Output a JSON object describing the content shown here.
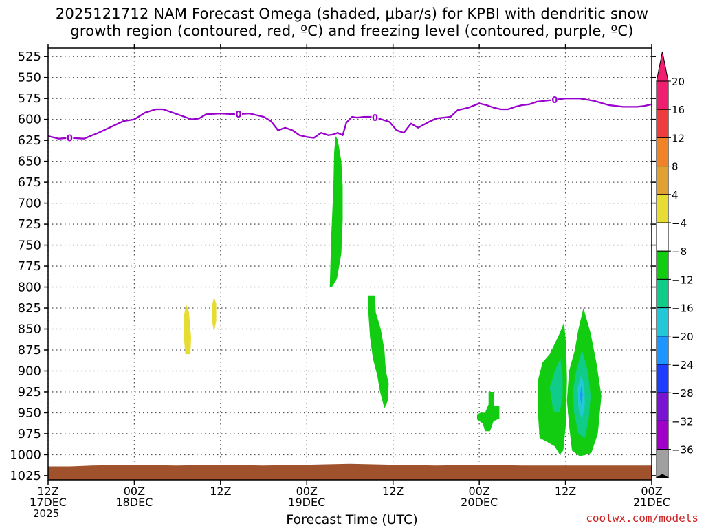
{
  "title": {
    "line1": "2025121712 NAM Forecast Omega (shaded, μbar/s) for KPBI with dendritic snow",
    "line2": "growth region (contoured, red, ºC) and freezing level (contoured, purple, ºC)"
  },
  "credit": "coolwx.com/models",
  "chart_data": {
    "type": "time-height",
    "title": "2025121712 NAM Forecast Omega (shaded, μbar/s) for KPBI with dendritic snow growth region (contoured, red, ºC) and freezing level (contoured, purple, ºC)",
    "xlabel": "Forecast Time (UTC)",
    "ylabel": "",
    "x_range_hours": [
      0,
      84
    ],
    "y_range_mb": [
      1030,
      515
    ],
    "y_ticks": [
      525,
      550,
      575,
      600,
      625,
      650,
      675,
      700,
      725,
      750,
      775,
      800,
      825,
      850,
      875,
      900,
      925,
      950,
      975,
      1000,
      1025
    ],
    "x_ticks": [
      {
        "hour": 0,
        "line1": "12Z",
        "line2": "17DEC",
        "line3": "2025"
      },
      {
        "hour": 12,
        "line1": "00Z",
        "line2": "18DEC"
      },
      {
        "hour": 24,
        "line1": "12Z"
      },
      {
        "hour": 36,
        "line1": "00Z",
        "line2": "19DEC"
      },
      {
        "hour": 48,
        "line1": "12Z"
      },
      {
        "hour": 60,
        "line1": "00Z",
        "line2": "20DEC"
      },
      {
        "hour": 72,
        "line1": "12Z"
      },
      {
        "hour": 84,
        "line1": "00Z",
        "line2": "21DEC"
      }
    ],
    "grid": true,
    "freezing_level": {
      "color": "#9900cc",
      "label": "0",
      "label_hours": [
        3,
        26.5,
        45.5,
        70.5
      ],
      "points": [
        [
          0,
          620
        ],
        [
          1.5,
          623
        ],
        [
          3,
          622
        ],
        [
          5,
          623
        ],
        [
          7,
          616
        ],
        [
          9,
          608
        ],
        [
          10.5,
          602
        ],
        [
          12,
          600
        ],
        [
          13.5,
          592
        ],
        [
          15,
          588
        ],
        [
          16,
          588
        ],
        [
          18,
          594
        ],
        [
          20,
          600
        ],
        [
          21,
          599
        ],
        [
          22,
          594
        ],
        [
          24,
          593
        ],
        [
          26,
          594
        ],
        [
          28,
          593
        ],
        [
          30,
          597
        ],
        [
          31,
          602
        ],
        [
          32,
          613
        ],
        [
          33,
          610
        ],
        [
          34,
          613
        ],
        [
          35,
          619
        ],
        [
          36,
          621
        ],
        [
          37,
          622
        ],
        [
          38,
          616
        ],
        [
          39,
          619
        ],
        [
          39.7,
          618
        ],
        [
          40.3,
          616
        ],
        [
          41,
          619
        ],
        [
          41.5,
          604
        ],
        [
          42.3,
          597
        ],
        [
          43,
          598
        ],
        [
          44,
          597
        ],
        [
          45,
          597
        ],
        [
          46,
          599
        ],
        [
          47.5,
          603
        ],
        [
          48.5,
          613
        ],
        [
          49.5,
          616
        ],
        [
          50.5,
          605
        ],
        [
          51.5,
          610
        ],
        [
          53,
          603
        ],
        [
          54,
          599
        ],
        [
          55,
          598
        ],
        [
          56,
          597
        ],
        [
          57,
          589
        ],
        [
          58.5,
          586
        ],
        [
          60,
          581
        ],
        [
          61,
          583
        ],
        [
          62,
          586
        ],
        [
          63,
          588
        ],
        [
          64,
          588
        ],
        [
          65,
          585
        ],
        [
          66,
          583
        ],
        [
          67,
          582
        ],
        [
          68,
          579
        ],
        [
          70,
          577
        ],
        [
          71,
          576
        ],
        [
          72,
          575
        ],
        [
          74,
          575
        ],
        [
          76,
          578
        ],
        [
          78,
          583
        ],
        [
          80,
          585
        ],
        [
          82,
          585
        ],
        [
          83,
          584
        ],
        [
          84,
          582
        ]
      ]
    },
    "omega_regions": [
      {
        "value_range": [
          -8,
          -4
        ],
        "color": "#11cc11",
        "shape": [
          [
            39.2,
            800
          ],
          [
            39.4,
            740
          ],
          [
            39.7,
            680
          ],
          [
            39.8,
            640
          ],
          [
            40,
            620
          ],
          [
            40.3,
            624
          ],
          [
            40.8,
            650
          ],
          [
            41,
            680
          ],
          [
            41,
            720
          ],
          [
            40.8,
            760
          ],
          [
            40.2,
            790
          ],
          [
            39.5,
            800
          ]
        ]
      },
      {
        "value_range": [
          -8,
          -4
        ],
        "color": "#11cc11",
        "shape": [
          [
            44.5,
            810
          ],
          [
            45.5,
            810
          ],
          [
            45.6,
            830
          ],
          [
            46.3,
            850
          ],
          [
            46.8,
            875
          ],
          [
            47,
            900
          ],
          [
            47.4,
            915
          ],
          [
            47.3,
            935
          ],
          [
            46.8,
            945
          ],
          [
            46.2,
            925
          ],
          [
            45.8,
            905
          ],
          [
            45.2,
            885
          ],
          [
            44.8,
            860
          ],
          [
            44.6,
            835
          ]
        ]
      },
      {
        "value_range": [
          -8,
          -4
        ],
        "color": "#11cc11",
        "shape": [
          [
            60.2,
            950
          ],
          [
            60.8,
            950
          ],
          [
            61.3,
            940
          ],
          [
            61.3,
            925
          ],
          [
            62,
            925
          ],
          [
            62,
            942
          ],
          [
            62.8,
            942
          ],
          [
            62.8,
            957
          ],
          [
            62,
            960
          ],
          [
            61.5,
            972
          ],
          [
            60.8,
            972
          ],
          [
            60.5,
            963
          ],
          [
            59.7,
            958
          ],
          [
            59.7,
            952
          ]
        ]
      },
      {
        "value_range": [
          -8,
          -4
        ],
        "color": "#11cc11",
        "shape": [
          [
            71.8,
            842
          ],
          [
            71.2,
            855
          ],
          [
            69.8,
            880
          ],
          [
            68.8,
            890
          ],
          [
            68.2,
            910
          ],
          [
            68.2,
            955
          ],
          [
            68.4,
            980
          ],
          [
            69.5,
            985
          ],
          [
            70.5,
            990
          ],
          [
            71.2,
            1000
          ],
          [
            71.7,
            995
          ],
          [
            72.1,
            960
          ],
          [
            72.2,
            910
          ],
          [
            72.1,
            870
          ]
        ]
      },
      {
        "value_range": [
          -12,
          -8
        ],
        "color": "#11cc88",
        "shape": [
          [
            71.3,
            885
          ],
          [
            70.5,
            900
          ],
          [
            69.8,
            920
          ],
          [
            70.3,
            948
          ],
          [
            71.2,
            950
          ],
          [
            71.6,
            930
          ],
          [
            71.6,
            905
          ]
        ]
      },
      {
        "value_range": [
          -8,
          -4
        ],
        "color": "#11cc11",
        "shape": [
          [
            74.5,
            825
          ],
          [
            73.8,
            850
          ],
          [
            73.3,
            875
          ],
          [
            72.5,
            900
          ],
          [
            72.2,
            935
          ],
          [
            72.5,
            965
          ],
          [
            72.9,
            995
          ],
          [
            74,
            1002
          ],
          [
            75.6,
            998
          ],
          [
            76.5,
            975
          ],
          [
            77,
            930
          ],
          [
            76.3,
            890
          ],
          [
            75.5,
            855
          ]
        ]
      },
      {
        "value_range": [
          -12,
          -8
        ],
        "color": "#11cc88",
        "shape": [
          [
            74.3,
            875
          ],
          [
            73.5,
            900
          ],
          [
            73,
            925
          ],
          [
            73.2,
            950
          ],
          [
            73.8,
            975
          ],
          [
            74.7,
            980
          ],
          [
            75.2,
            960
          ],
          [
            75.5,
            930
          ],
          [
            75.1,
            900
          ]
        ]
      },
      {
        "value_range": [
          -16,
          -12
        ],
        "color": "#22c8d8",
        "shape": [
          [
            74.2,
            905
          ],
          [
            73.7,
            920
          ],
          [
            73.8,
            945
          ],
          [
            74.3,
            958
          ],
          [
            74.7,
            940
          ],
          [
            74.6,
            918
          ]
        ]
      },
      {
        "value_range": [
          -20,
          -16
        ],
        "color": "#1e96ff",
        "shape": [
          [
            74.2,
            918
          ],
          [
            74.0,
            930
          ],
          [
            74.2,
            940
          ],
          [
            74.4,
            928
          ]
        ]
      },
      {
        "value_range": [
          4,
          8
        ],
        "color": "#e6dc32",
        "shape": [
          [
            19.2,
            820
          ],
          [
            19.6,
            830
          ],
          [
            19.9,
            860
          ],
          [
            19.8,
            880
          ],
          [
            19.1,
            880
          ],
          [
            18.9,
            860
          ],
          [
            18.9,
            835
          ]
        ]
      },
      {
        "value_range": [
          4,
          8
        ],
        "color": "#e6dc32",
        "shape": [
          [
            23.1,
            812
          ],
          [
            23.4,
            820
          ],
          [
            23.4,
            840
          ],
          [
            23.1,
            853
          ],
          [
            22.8,
            840
          ],
          [
            22.8,
            822
          ]
        ]
      }
    ],
    "terrain": {
      "color": "#a0522d",
      "top_mb": [
        [
          0,
          1014
        ],
        [
          3,
          1014
        ],
        [
          6,
          1013
        ],
        [
          12,
          1012
        ],
        [
          18,
          1013
        ],
        [
          24,
          1012
        ],
        [
          30,
          1013
        ],
        [
          36,
          1012
        ],
        [
          42,
          1011
        ],
        [
          48,
          1012
        ],
        [
          54,
          1013
        ],
        [
          60,
          1012
        ],
        [
          66,
          1013
        ],
        [
          72,
          1013
        ],
        [
          78,
          1013
        ],
        [
          84,
          1013
        ]
      ]
    },
    "colorbar": {
      "labels": [
        "20",
        "16",
        "12",
        "8",
        "4",
        "−4",
        "−8",
        "−12",
        "−16",
        "−20",
        "−24",
        "−28",
        "−32",
        "−36"
      ],
      "colors": [
        "#f01e6e",
        "#f03c3c",
        "#f08228",
        "#e1a032",
        "#e6dc32",
        "#ffffff",
        "#11cc11",
        "#11cc88",
        "#22c8d8",
        "#1e96ff",
        "#1e3cff",
        "#7814d2",
        "#a000c8",
        "#a0a0a0"
      ],
      "top_arrow": "#f01e6e",
      "bottom_arrow": "#000000"
    }
  }
}
